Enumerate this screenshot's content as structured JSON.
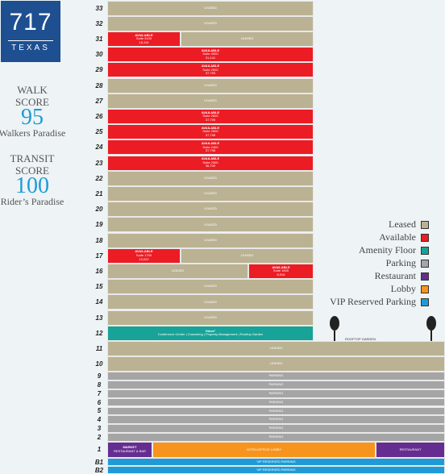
{
  "logo": {
    "number": "717",
    "name": "TEXAS"
  },
  "scores": [
    {
      "label_lines": [
        "WALK",
        "SCORE"
      ],
      "value": "95",
      "caption": "Walkers Paradise"
    },
    {
      "label_lines": [
        "TRANSIT",
        "SCORE"
      ],
      "value": "100",
      "caption": "Rider’s Paradise"
    }
  ],
  "legend": [
    {
      "name": "Leased",
      "color": "#bab293"
    },
    {
      "name": "Available",
      "color": "#ec1c24"
    },
    {
      "name": "Amenity Floor",
      "color": "#17a398"
    },
    {
      "name": "Parking",
      "color": "#a5a5a5"
    },
    {
      "name": "Restaurant",
      "color": "#662d91"
    },
    {
      "name": "Lobby",
      "color": "#f7941d"
    },
    {
      "name": "VIP Reserved Parking",
      "color": "#1e9bd7"
    }
  ],
  "rooftop_label": "ROOFTOP GARDEN",
  "floors": [
    {
      "label": "33",
      "segments": [
        {
          "legend": 0,
          "lines": [
            "LEASED"
          ]
        }
      ]
    },
    {
      "label": "32",
      "segments": [
        {
          "legend": 0,
          "lines": [
            "LEASED"
          ]
        }
      ]
    },
    {
      "label": "31",
      "segments": [
        {
          "legend": 1,
          "lines": [
            "AVAILABLE",
            "Suite 3100",
            "15,114"
          ]
        },
        {
          "legend": 0,
          "lines": [
            "LEASED"
          ]
        }
      ]
    },
    {
      "label": "30",
      "segments": [
        {
          "legend": 1,
          "lines": [
            "AVAILABLE",
            "Suite 3000",
            "31,141"
          ]
        }
      ]
    },
    {
      "label": "29",
      "segments": [
        {
          "legend": 1,
          "lines": [
            "AVAILABLE",
            "Suite 2900",
            "37,793"
          ]
        }
      ]
    },
    {
      "label": "28",
      "segments": [
        {
          "legend": 0,
          "lines": [
            "LEASED"
          ]
        }
      ]
    },
    {
      "label": "27",
      "segments": [
        {
          "legend": 0,
          "lines": [
            "LEASED"
          ]
        }
      ]
    },
    {
      "label": "26",
      "segments": [
        {
          "legend": 1,
          "lines": [
            "AVAILABLE",
            "Suite 2600",
            "37,795"
          ]
        }
      ]
    },
    {
      "label": "25",
      "segments": [
        {
          "legend": 1,
          "lines": [
            "AVAILABLE",
            "Suite 2500",
            "37,798"
          ]
        }
      ]
    },
    {
      "label": "24",
      "segments": [
        {
          "legend": 1,
          "lines": [
            "AVAILABLE",
            "Suite 2400",
            "37,798"
          ]
        }
      ]
    },
    {
      "label": "23",
      "segments": [
        {
          "legend": 1,
          "lines": [
            "AVAILABLE",
            "Suite 2300",
            "36,709"
          ]
        }
      ]
    },
    {
      "label": "22",
      "segments": [
        {
          "legend": 0,
          "lines": [
            "LEASED"
          ]
        }
      ]
    },
    {
      "label": "21",
      "segments": [
        {
          "legend": 0,
          "lines": [
            "LEASED"
          ]
        }
      ]
    },
    {
      "label": "20",
      "segments": [
        {
          "legend": 0,
          "lines": [
            "LEASED"
          ]
        }
      ]
    },
    {
      "label": "19",
      "segments": [
        {
          "legend": 0,
          "lines": [
            "LEASED"
          ]
        }
      ]
    },
    {
      "label": "18",
      "segments": [
        {
          "legend": 0,
          "lines": [
            "LEASED"
          ]
        }
      ]
    },
    {
      "label": "17",
      "segments": [
        {
          "legend": 1,
          "lines": [
            "AVAILABLE",
            "Suite 1700",
            "13,022"
          ]
        },
        {
          "legend": 0,
          "lines": [
            "LEASED"
          ]
        }
      ]
    },
    {
      "label": "16",
      "segments": [
        {
          "legend": 0,
          "lines": [
            "LEASED"
          ]
        },
        {
          "legend": 1,
          "lines": [
            "AVAILABLE",
            "Suite 1600",
            "8,916"
          ]
        }
      ]
    },
    {
      "label": "15",
      "segments": [
        {
          "legend": 0,
          "lines": [
            "LEASED"
          ]
        }
      ]
    },
    {
      "label": "14",
      "segments": [
        {
          "legend": 0,
          "lines": [
            "LEASED"
          ]
        }
      ]
    },
    {
      "label": "13",
      "segments": [
        {
          "legend": 0,
          "lines": [
            "LEASED"
          ]
        }
      ]
    },
    {
      "label": "12",
      "segments": [
        {
          "legend": 2,
          "lines": [
            "Hines²",
            "Conference Center | Coworking | Property Management | Rooftop Garden"
          ]
        }
      ]
    },
    {
      "label": "11",
      "segments": [
        {
          "legend": 0,
          "lines": [
            "LEASED"
          ]
        }
      ]
    },
    {
      "label": "10",
      "segments": [
        {
          "legend": 0,
          "lines": [
            "LEASED"
          ]
        }
      ]
    },
    {
      "label": "9",
      "segments": [
        {
          "legend": 3,
          "lines": [
            "PARKING"
          ]
        }
      ]
    },
    {
      "label": "8",
      "segments": [
        {
          "legend": 3,
          "lines": [
            "PARKING"
          ]
        }
      ]
    },
    {
      "label": "7",
      "segments": [
        {
          "legend": 3,
          "lines": [
            "PARKING"
          ]
        }
      ]
    },
    {
      "label": "6",
      "segments": [
        {
          "legend": 3,
          "lines": [
            "PARKING"
          ]
        }
      ]
    },
    {
      "label": "5",
      "segments": [
        {
          "legend": 3,
          "lines": [
            "PARKING"
          ]
        }
      ]
    },
    {
      "label": "4",
      "segments": [
        {
          "legend": 3,
          "lines": [
            "PARKING"
          ]
        }
      ]
    },
    {
      "label": "3",
      "segments": [
        {
          "legend": 3,
          "lines": [
            "PARKING"
          ]
        }
      ]
    },
    {
      "label": "2",
      "segments": [
        {
          "legend": 3,
          "lines": [
            "PARKING"
          ]
        }
      ]
    },
    {
      "label": "1",
      "segments": [
        {
          "legend": 4,
          "lines": [
            "MARKET",
            "RESTAURANT & BAR"
          ]
        },
        {
          "legend": 5,
          "lines": [
            "HOTEL/OFFICE LOBBY"
          ]
        },
        {
          "legend": 4,
          "lines": [
            "RESTAURANT"
          ]
        }
      ]
    },
    {
      "label": "B1",
      "segments": [
        {
          "legend": 6,
          "lines": [
            "VIP RESERVED PARKING"
          ]
        }
      ]
    },
    {
      "label": "B2",
      "segments": [
        {
          "legend": 6,
          "lines": [
            "VIP RESERVED PARKING"
          ]
        }
      ]
    }
  ]
}
